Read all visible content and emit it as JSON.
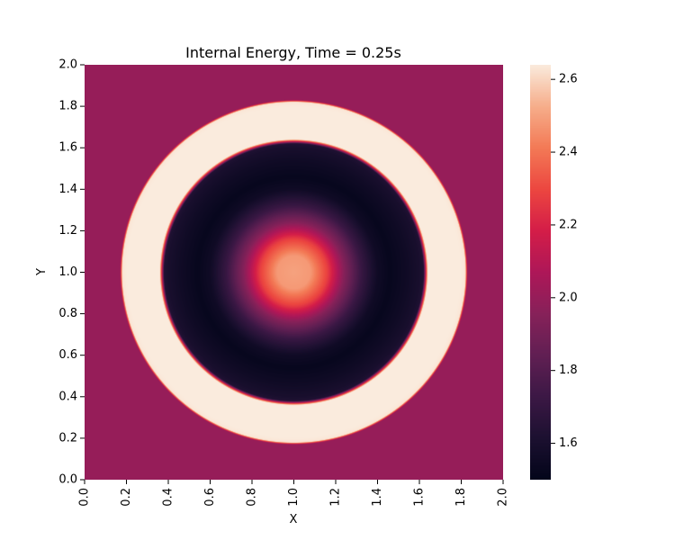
{
  "chart_data": {
    "type": "heatmap",
    "title": "Internal Energy, Time = 0.25s",
    "xlabel": "X",
    "ylabel": "Y",
    "xlim": [
      0.0,
      2.0
    ],
    "ylim": [
      0.0,
      2.0
    ],
    "x_ticks": [
      "0.0",
      "0.2",
      "0.4",
      "0.6",
      "0.8",
      "1.0",
      "1.2",
      "1.4",
      "1.6",
      "1.8",
      "2.0"
    ],
    "y_ticks": [
      "0.0",
      "0.2",
      "0.4",
      "0.6",
      "0.8",
      "1.0",
      "1.2",
      "1.4",
      "1.6",
      "1.8",
      "2.0"
    ],
    "colorbar": {
      "colormap": "rocket",
      "range": [
        1.5,
        2.64
      ],
      "ticks": [
        "1.6",
        "1.8",
        "2.0",
        "2.2",
        "2.4",
        "2.6"
      ],
      "tick_values": [
        1.6,
        1.8,
        2.0,
        2.2,
        2.4,
        2.6
      ]
    },
    "field": {
      "center": [
        1.0,
        1.0
      ],
      "radial_profile": [
        {
          "r": 0.0,
          "value": 2.5
        },
        {
          "r": 0.08,
          "value": 2.48
        },
        {
          "r": 0.16,
          "value": 2.28
        },
        {
          "r": 0.24,
          "value": 1.95
        },
        {
          "r": 0.32,
          "value": 1.72
        },
        {
          "r": 0.4,
          "value": 1.56
        },
        {
          "r": 0.46,
          "value": 1.52
        },
        {
          "r": 0.54,
          "value": 1.56
        },
        {
          "r": 0.6,
          "value": 1.6
        },
        {
          "r": 0.62,
          "value": 1.63
        },
        {
          "r": 0.64,
          "value": 2.64
        },
        {
          "r": 0.8,
          "value": 2.64
        },
        {
          "r": 0.82,
          "value": 2.63
        },
        {
          "r": 0.83,
          "value": 2.0
        },
        {
          "r": 2.0,
          "value": 2.0
        }
      ]
    }
  }
}
